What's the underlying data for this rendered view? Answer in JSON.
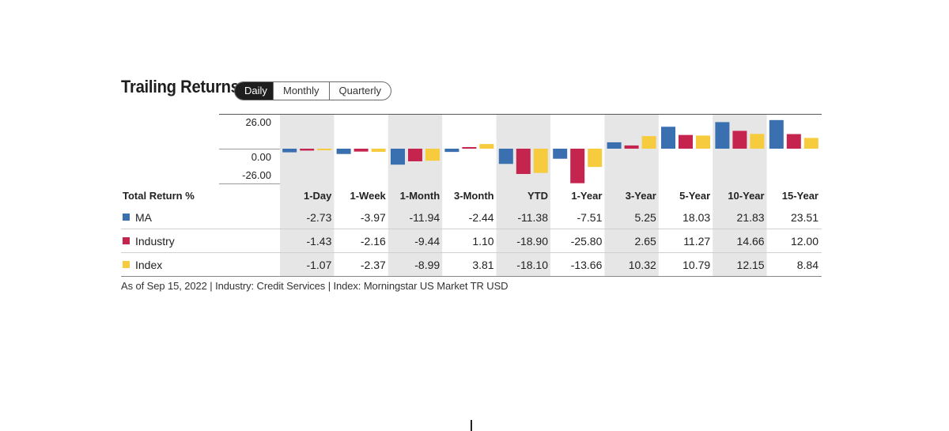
{
  "title": "Trailing Returns",
  "toggle": {
    "options": [
      "Daily",
      "Monthly",
      "Quarterly"
    ],
    "active": "Daily"
  },
  "chart_data": {
    "type": "bar",
    "y_ticks": [
      "26.00",
      "0.00",
      "-26.00"
    ],
    "ylim": [
      -26,
      26
    ],
    "categories": [
      "1-Day",
      "1-Week",
      "1-Month",
      "3-Month",
      "YTD",
      "1-Year",
      "3-Year",
      "5-Year",
      "10-Year",
      "15-Year"
    ],
    "table_header": "Total Return %",
    "series": [
      {
        "name": "MA",
        "color": "#3a6fb0",
        "values": [
          -2.73,
          -3.97,
          -11.94,
          -2.44,
          -11.38,
          -7.51,
          5.25,
          18.03,
          21.83,
          23.51
        ],
        "labels": [
          "-2.73",
          "-3.97",
          "-11.94",
          "-2.44",
          "-11.38",
          "-7.51",
          "5.25",
          "18.03",
          "21.83",
          "23.51"
        ]
      },
      {
        "name": "Industry",
        "color": "#c5244e",
        "values": [
          -1.43,
          -2.16,
          -9.44,
          1.1,
          -18.9,
          -25.8,
          2.65,
          11.27,
          14.66,
          12.0
        ],
        "labels": [
          "-1.43",
          "-2.16",
          "-9.44",
          "1.10",
          "-18.90",
          "-25.80",
          "2.65",
          "11.27",
          "14.66",
          "12.00"
        ]
      },
      {
        "name": "Index",
        "color": "#f7cb3e",
        "values": [
          -1.07,
          -2.37,
          -8.99,
          3.81,
          -18.1,
          -13.66,
          10.32,
          10.79,
          12.15,
          8.84
        ],
        "labels": [
          "-1.07",
          "-2.37",
          "-8.99",
          "3.81",
          "-18.10",
          "-13.66",
          "10.32",
          "10.79",
          "12.15",
          "8.84"
        ]
      }
    ],
    "shaded_columns": [
      0,
      2,
      4,
      6,
      8
    ]
  },
  "footnote": "As of Sep 15, 2022 | Industry: Credit Services | Index: Morningstar US Market TR USD"
}
